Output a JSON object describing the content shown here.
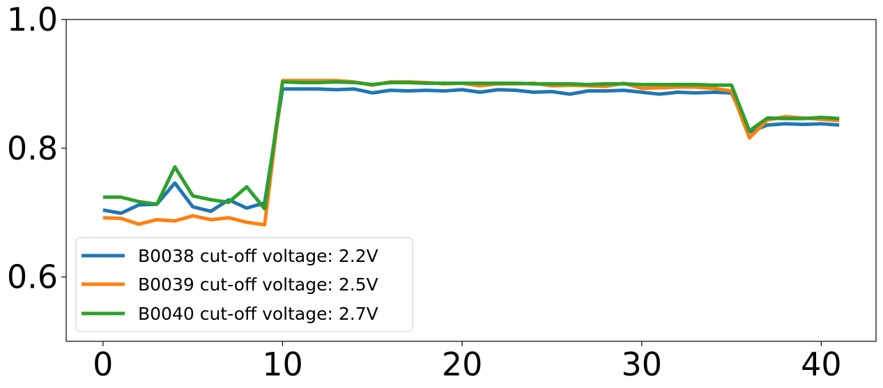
{
  "chart_data": {
    "type": "line",
    "title": "",
    "xlabel": "",
    "ylabel": "",
    "xlim": [
      -2.05,
      43.05
    ],
    "ylim": [
      0.5,
      1.0
    ],
    "x_ticks": [
      0,
      10,
      20,
      30,
      40
    ],
    "x_tick_labels": [
      "0",
      "10",
      "20",
      "30",
      "40"
    ],
    "y_ticks": [
      0.6,
      0.8,
      1.0
    ],
    "y_tick_labels": [
      "0.6",
      "0.8",
      "1.0"
    ],
    "grid": false,
    "legend_position": "lower-left",
    "x": [
      0,
      1,
      2,
      3,
      4,
      5,
      6,
      7,
      8,
      9,
      10,
      11,
      12,
      13,
      14,
      15,
      16,
      17,
      18,
      19,
      20,
      21,
      22,
      23,
      24,
      25,
      26,
      27,
      28,
      29,
      30,
      31,
      32,
      33,
      34,
      35,
      36,
      37,
      38,
      39,
      40,
      41
    ],
    "series": [
      {
        "name": "B0038 cut-off voltage: 2.2V",
        "color": "#1f77b4",
        "values": [
          0.704,
          0.699,
          0.712,
          0.713,
          0.746,
          0.709,
          0.702,
          0.72,
          0.707,
          0.715,
          0.892,
          0.892,
          0.892,
          0.891,
          0.892,
          0.886,
          0.89,
          0.889,
          0.89,
          0.889,
          0.891,
          0.887,
          0.891,
          0.89,
          0.887,
          0.888,
          0.884,
          0.889,
          0.889,
          0.89,
          0.887,
          0.884,
          0.887,
          0.886,
          0.887,
          0.886,
          0.825,
          0.836,
          0.838,
          0.837,
          0.838,
          0.836
        ]
      },
      {
        "name": "B0039 cut-off voltage: 2.5V",
        "color": "#ff7f0e",
        "values": [
          0.692,
          0.691,
          0.682,
          0.689,
          0.687,
          0.695,
          0.689,
          0.692,
          0.685,
          0.681,
          0.905,
          0.905,
          0.905,
          0.905,
          0.903,
          0.898,
          0.903,
          0.903,
          0.902,
          0.9,
          0.901,
          0.897,
          0.9,
          0.9,
          0.901,
          0.897,
          0.898,
          0.897,
          0.896,
          0.901,
          0.893,
          0.894,
          0.895,
          0.895,
          0.893,
          0.889,
          0.816,
          0.844,
          0.849,
          0.847,
          0.845,
          0.843
        ]
      },
      {
        "name": "B0040 cut-off voltage: 2.7V",
        "color": "#2ca02c",
        "values": [
          0.724,
          0.724,
          0.717,
          0.713,
          0.771,
          0.726,
          0.72,
          0.716,
          0.74,
          0.706,
          0.903,
          0.902,
          0.902,
          0.903,
          0.902,
          0.899,
          0.902,
          0.902,
          0.901,
          0.901,
          0.901,
          0.901,
          0.901,
          0.901,
          0.9,
          0.9,
          0.9,
          0.899,
          0.9,
          0.9,
          0.899,
          0.899,
          0.899,
          0.899,
          0.898,
          0.898,
          0.827,
          0.847,
          0.846,
          0.846,
          0.848,
          0.846
        ]
      }
    ]
  }
}
